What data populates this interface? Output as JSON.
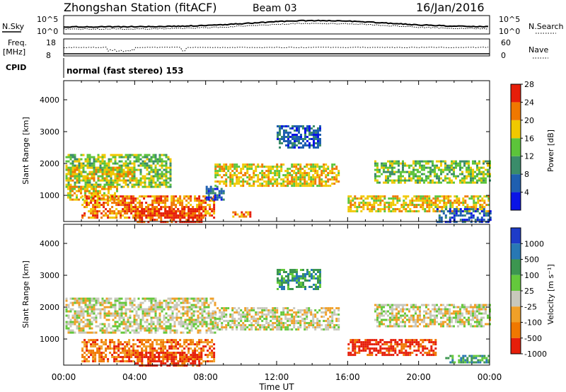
{
  "header": {
    "station": "Zhongshan Station (fitACF)",
    "beam": "Beam 03",
    "date": "16/Jan/2016"
  },
  "top_panels": {
    "nsky_label": "N.Sky",
    "nsky_ticks": [
      "10^5",
      "10^0"
    ],
    "nsearch_label": "N.Search",
    "nsearch_ticks": [
      "10^5",
      "10^0"
    ],
    "freq_label_1": "Freq.",
    "freq_label_2": "[MHz]",
    "freq_ticks": [
      "18",
      "8"
    ],
    "nave_label": "Nave",
    "nave_ticks": [
      "60",
      "0"
    ],
    "cpid_label": "CPID",
    "cpid_text": "normal (fast stereo) 153"
  },
  "chart_data": [
    {
      "type": "heatmap",
      "name": "power",
      "ylabel": "Slant Range [km]",
      "ylim": [
        180,
        4600
      ],
      "yticks": [
        "1000",
        "2000",
        "3000",
        "4000"
      ],
      "xlabel": "Time UT",
      "xticks": [
        "00:00",
        "04:00",
        "08:00",
        "12:00",
        "16:00",
        "20:00",
        "00:00"
      ],
      "xlim_hours": [
        0,
        24
      ],
      "colorbar": {
        "label": "Power [dB]",
        "ticks": [
          "4",
          "8",
          "12",
          "16",
          "20",
          "24",
          "28"
        ],
        "colors": [
          "#0a14e6",
          "#1f5fb0",
          "#3a8c6a",
          "#5cc43a",
          "#f0c800",
          "#f07800",
          "#e61e0a"
        ]
      },
      "echo_regions": [
        {
          "t": [
            0.1,
            6
          ],
          "r": [
            1300,
            2300
          ],
          "value": 14
        },
        {
          "t": [
            0.1,
            4
          ],
          "r": [
            1500,
            1900
          ],
          "value": 20
        },
        {
          "t": [
            0.2,
            3
          ],
          "r": [
            900,
            1300
          ],
          "value": 18
        },
        {
          "t": [
            1,
            8.5
          ],
          "r": [
            300,
            1000
          ],
          "value": 22
        },
        {
          "t": [
            4,
            7.8
          ],
          "r": [
            200,
            600
          ],
          "value": 27
        },
        {
          "t": [
            8.5,
            15.5
          ],
          "r": [
            1300,
            2000
          ],
          "value": 18
        },
        {
          "t": [
            8,
            9
          ],
          "r": [
            900,
            1300
          ],
          "value": 8
        },
        {
          "t": [
            9.5,
            10.5
          ],
          "r": [
            350,
            500
          ],
          "value": 22
        },
        {
          "t": [
            16,
            24
          ],
          "r": [
            500,
            1000
          ],
          "value": 21
        },
        {
          "t": [
            17.5,
            24
          ],
          "r": [
            1400,
            2100
          ],
          "value": 15
        },
        {
          "t": [
            21,
            24
          ],
          "r": [
            200,
            600
          ],
          "value": 9
        },
        {
          "t": [
            12,
            14.5
          ],
          "r": [
            2500,
            3200
          ],
          "value": 6
        }
      ]
    },
    {
      "type": "heatmap",
      "name": "velocity",
      "ylabel": "Slant Range [km]",
      "ylim": [
        180,
        4600
      ],
      "yticks": [
        "1000",
        "2000",
        "3000",
        "4000"
      ],
      "xlabel": "Time UT",
      "xticks": [
        "00:00",
        "04:00",
        "08:00",
        "12:00",
        "16:00",
        "20:00",
        "00:00"
      ],
      "xlim_hours": [
        0,
        24
      ],
      "colorbar": {
        "label": "Velocity [m s⁻¹]",
        "ticks": [
          "1000",
          "500",
          "100",
          "25",
          "-25",
          "-100",
          "-500",
          "-1000"
        ],
        "colors": [
          "#1e3cc8",
          "#2878b4",
          "#3c9650",
          "#64c83c",
          "#c8c8bc",
          "#f0a028",
          "#f07800",
          "#e61e0a"
        ]
      },
      "echo_regions": [
        {
          "t": [
            0.1,
            8.5
          ],
          "r": [
            1200,
            2300
          ],
          "value": 0
        },
        {
          "t": [
            8.5,
            15.5
          ],
          "r": [
            1300,
            2000
          ],
          "value": 0
        },
        {
          "t": [
            1,
            8.5
          ],
          "r": [
            300,
            1000
          ],
          "value": -300
        },
        {
          "t": [
            4,
            7.8
          ],
          "r": [
            200,
            600
          ],
          "value": -400
        },
        {
          "t": [
            16,
            21
          ],
          "r": [
            500,
            1000
          ],
          "value": -350
        },
        {
          "t": [
            17.5,
            24
          ],
          "r": [
            1400,
            2100
          ],
          "value": 0
        },
        {
          "t": [
            21.5,
            24
          ],
          "r": [
            250,
            500
          ],
          "value": 150
        },
        {
          "t": [
            12,
            14.5
          ],
          "r": [
            2600,
            3200
          ],
          "value": 80
        }
      ]
    }
  ]
}
